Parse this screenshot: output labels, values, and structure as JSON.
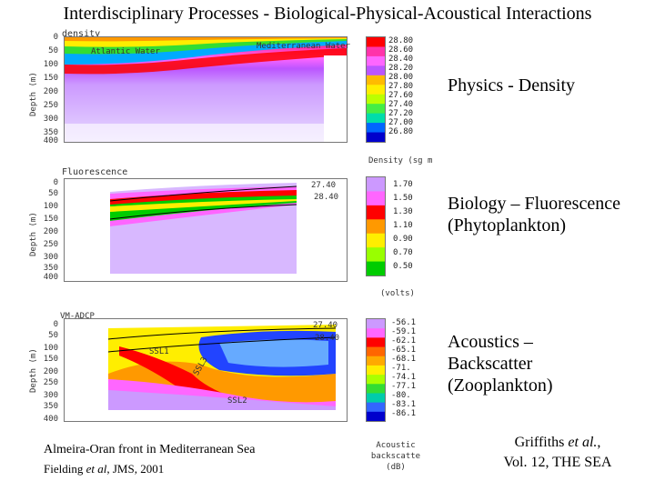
{
  "slide": {
    "title": "Interdisciplinary Processes - Biological-Physical-Acoustical Interactions"
  },
  "panels": [
    {
      "id": "density",
      "header": "density",
      "annotations": [
        "Atlantic Water",
        "Mediterranean Water"
      ],
      "ylabel": "Depth (m)",
      "depth_ticks": [
        "0",
        "50",
        "100",
        "150",
        "200",
        "250",
        "300",
        "350",
        "400"
      ],
      "colorbar_values": [
        "28.80",
        "28.60",
        "28.40",
        "28.20",
        "28.00",
        "27.80",
        "27.60",
        "27.40",
        "27.20",
        "27.00",
        "26.80"
      ],
      "colorbar_unit": "Density (sg m",
      "colors": [
        "#ff0000",
        "#ff33aa",
        "#ff66ff",
        "#bb55ff",
        "#ffbb00",
        "#ffee00",
        "#bbff00",
        "#44ee44",
        "#00ddaa",
        "#0066ff",
        "#0000cc"
      ],
      "side_label": "Physics - Density"
    },
    {
      "id": "fluorescence",
      "header": "Fluorescence",
      "contour_labels": [
        "27.40",
        "28.40"
      ],
      "ylabel": "Depth (m)",
      "depth_ticks": [
        "0",
        "50",
        "100",
        "150",
        "200",
        "250",
        "300",
        "350",
        "400"
      ],
      "colorbar_values": [
        "1.70",
        "1.50",
        "1.30",
        "1.10",
        "0.90",
        "0.70",
        "0.50"
      ],
      "colorbar_unit": "(volts)",
      "colors": [
        "#cc99ff",
        "#ff66ff",
        "#ff0000",
        "#ff9900",
        "#ffee00",
        "#99ff00",
        "#00cc00"
      ],
      "side_label": "Biology – Fluorescence (Phytoplankton)"
    },
    {
      "id": "acoustics",
      "header": "VM-ADCP",
      "contour_labels": [
        "27.40",
        "28.40"
      ],
      "layer_labels": [
        "SSL1",
        "SSL3",
        "SSL2"
      ],
      "ylabel": "Depth (m)",
      "depth_ticks": [
        "0",
        "50",
        "100",
        "150",
        "200",
        "250",
        "300",
        "350",
        "400"
      ],
      "colorbar_values": [
        "-56.1",
        "-59.1",
        "-62.1",
        "-65.1",
        "-68.1",
        "-71.",
        "-74.1",
        "-77.1",
        "-80.",
        "-83.1",
        "-86.1"
      ],
      "colorbar_unit": "Acoustic backscatte (dB)",
      "colors": [
        "#cc99ff",
        "#ff66ff",
        "#ff0000",
        "#ff6600",
        "#ffaa00",
        "#ffee00",
        "#aaff00",
        "#33dd33",
        "#00ccaa",
        "#3366ff",
        "#0000cc"
      ],
      "side_label": "Acoustics – Backscatter (Zooplankton)"
    }
  ],
  "citations": {
    "left_line1": "Almeira-Oran front in Mediterranean Sea",
    "left_line2_pre": "Fielding ",
    "left_line2_em": "et al",
    "left_line2_post": ", JMS, 2001",
    "right_line1_pre": "Griffiths ",
    "right_line1_em": "et al.",
    "right_line1_post": ",",
    "right_line2": "Vol. 12, THE SEA"
  }
}
